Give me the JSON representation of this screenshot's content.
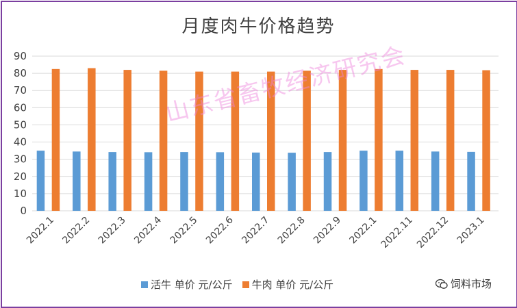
{
  "chart_data": {
    "type": "bar",
    "title": "月度肉牛价格趋势",
    "categories": [
      "2022.1",
      "2022.2",
      "2022.3",
      "2022.4",
      "2022.5",
      "2022.6",
      "2022.7",
      "2022.8",
      "2022.9",
      "2022.1",
      "2022.11",
      "2022.12",
      "2023.1"
    ],
    "series": [
      {
        "name": "活牛 单价 元/公斤",
        "color": "#5b9bd5",
        "values": [
          35.0,
          34.5,
          34.2,
          34.1,
          34.2,
          34.1,
          33.9,
          33.8,
          34.2,
          35.0,
          35.0,
          34.5,
          34.3
        ]
      },
      {
        "name": "牛肉 单价 元/公斤",
        "color": "#ed7d31",
        "values": [
          82.5,
          83.0,
          82.0,
          81.5,
          81.0,
          81.0,
          81.0,
          81.5,
          82.0,
          82.5,
          82.0,
          82.0,
          81.8
        ]
      }
    ],
    "ylim": [
      0,
      90
    ],
    "yticks": [
      0,
      10,
      20,
      30,
      40,
      50,
      60,
      70,
      80,
      90
    ],
    "grid": true,
    "legend_position": "bottom"
  },
  "watermark": "山东省畜牧经济研究会",
  "brand": {
    "label": "饲料市场",
    "icon": "wechat-icon"
  }
}
